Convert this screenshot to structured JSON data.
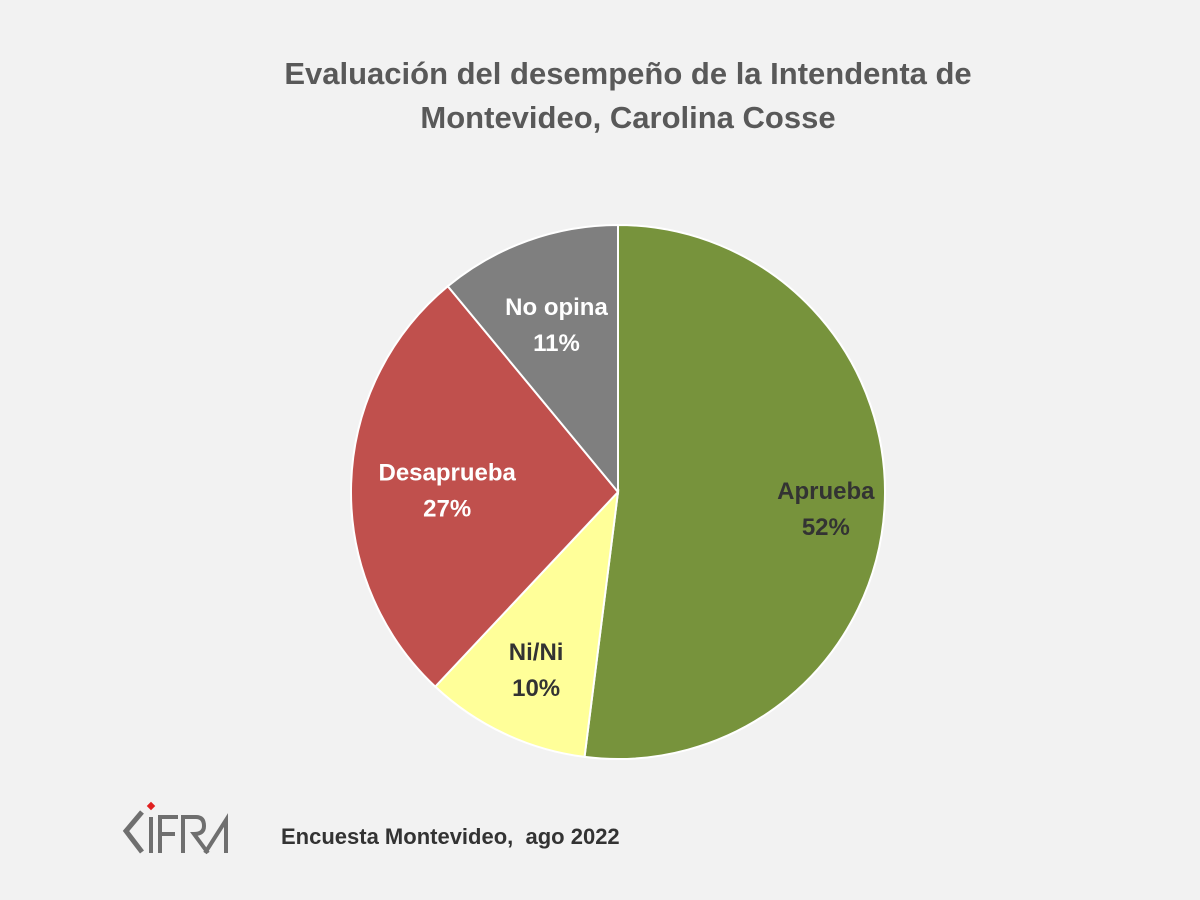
{
  "chart_data": {
    "type": "pie",
    "title_lines": [
      "Evaluación del desempeño de la Intendenta de",
      "Montevideo, Carolina Cosse"
    ],
    "slices": [
      {
        "label": "Aprueba",
        "value": 52,
        "display": "52%",
        "color": "#77933c",
        "text_color": "#333333"
      },
      {
        "label": "Ni/Ni",
        "value": 10,
        "display": "10%",
        "color": "#ffff99",
        "text_color": "#333333"
      },
      {
        "label": "Desaprueba",
        "value": 27,
        "display": "27%",
        "color": "#c0504d",
        "text_color": "#ffffff"
      },
      {
        "label": "No opina",
        "value": 11,
        "display": "11%",
        "color": "#7f7f7f",
        "text_color": "#ffffff"
      }
    ],
    "start": "top",
    "direction": "clockwise",
    "legend": "none"
  },
  "footer": {
    "source": "Encuesta Montevideo,  ago 2022",
    "logo_text": "CIFRA"
  }
}
